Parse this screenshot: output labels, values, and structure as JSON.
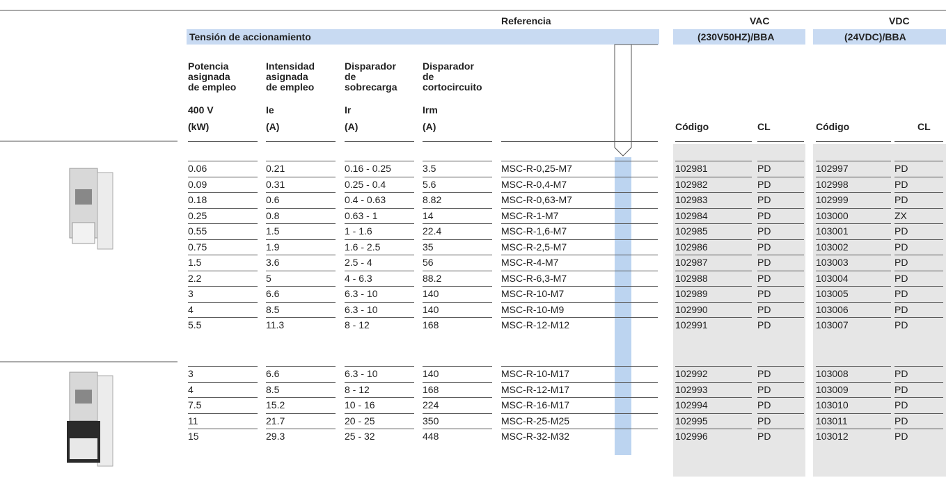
{
  "header": {
    "reference": "Referencia",
    "tension": "Tensión de accionamiento",
    "vac": {
      "title": "VAC",
      "subtitle": "(230V50HZ)/BBA",
      "code": "Código",
      "cl": "CL"
    },
    "vdc": {
      "title": "VDC",
      "subtitle": "(24VDC)/BBA",
      "code": "Código",
      "cl": "CL"
    }
  },
  "columns": [
    {
      "lines": [
        "Potencia",
        "asignada",
        "de empleo"
      ],
      "symbol": "400 V",
      "unit": "(kW)"
    },
    {
      "lines": [
        "Intensidad",
        "asignada",
        "de empleo"
      ],
      "symbol": "Ie",
      "unit": "(A)"
    },
    {
      "lines": [
        "Disparador",
        "de",
        "sobrecarga"
      ],
      "symbol": "Ir",
      "unit": "(A)"
    },
    {
      "lines": [
        "Disparador",
        "de",
        "cortocircuito"
      ],
      "symbol": "Irm",
      "unit": "(A)"
    }
  ],
  "groups": [
    {
      "rows": [
        [
          "0.06",
          "0.21",
          "0.16 - 0.25",
          "3.5",
          "MSC-R-0,25-M7",
          "102981",
          "PD",
          "102997",
          "PD"
        ],
        [
          "0.09",
          "0.31",
          "0.25 - 0.4",
          "5.6",
          "MSC-R-0,4-M7",
          "102982",
          "PD",
          "102998",
          "PD"
        ],
        [
          "0.18",
          "0.6",
          "0.4 - 0.63",
          "8.82",
          "MSC-R-0,63-M7",
          "102983",
          "PD",
          "102999",
          "PD"
        ],
        [
          "0.25",
          "0.8",
          "0.63 - 1",
          "14",
          "MSC-R-1-M7",
          "102984",
          "PD",
          "103000",
          "ZX"
        ],
        [
          "0.55",
          "1.5",
          "1 - 1.6",
          "22.4",
          "MSC-R-1,6-M7",
          "102985",
          "PD",
          "103001",
          "PD"
        ],
        [
          "0.75",
          "1.9",
          "1.6 - 2.5",
          "35",
          "MSC-R-2,5-M7",
          "102986",
          "PD",
          "103002",
          "PD"
        ],
        [
          "1.5",
          "3.6",
          "2.5 - 4",
          "56",
          "MSC-R-4-M7",
          "102987",
          "PD",
          "103003",
          "PD"
        ],
        [
          "2.2",
          "5",
          "4 - 6.3",
          "88.2",
          "MSC-R-6,3-M7",
          "102988",
          "PD",
          "103004",
          "PD"
        ],
        [
          "3",
          "6.6",
          "6.3 - 10",
          "140",
          "MSC-R-10-M7",
          "102989",
          "PD",
          "103005",
          "PD"
        ],
        [
          "4",
          "8.5",
          "6.3 - 10",
          "140",
          "MSC-R-10-M9",
          "102990",
          "PD",
          "103006",
          "PD"
        ],
        [
          "5.5",
          "11.3",
          "8 - 12",
          "168",
          "MSC-R-12-M12",
          "102991",
          "PD",
          "103007",
          "PD"
        ]
      ]
    },
    {
      "rows": [
        [
          "3",
          "6.6",
          "6.3 - 10",
          "140",
          "MSC-R-10-M17",
          "102992",
          "PD",
          "103008",
          "PD"
        ],
        [
          "4",
          "8.5",
          "8 - 12",
          "168",
          "MSC-R-12-M17",
          "102993",
          "PD",
          "103009",
          "PD"
        ],
        [
          "7.5",
          "15.2",
          "10 - 16",
          "224",
          "MSC-R-16-M17",
          "102994",
          "PD",
          "103010",
          "PD"
        ],
        [
          "11",
          "21.7",
          "20 - 25",
          "350",
          "MSC-R-25-M25",
          "102995",
          "PD",
          "103011",
          "PD"
        ],
        [
          "15",
          "29.3",
          "25 - 32",
          "448",
          "MSC-R-32-M32",
          "102996",
          "PD",
          "103012",
          "PD"
        ]
      ]
    }
  ]
}
